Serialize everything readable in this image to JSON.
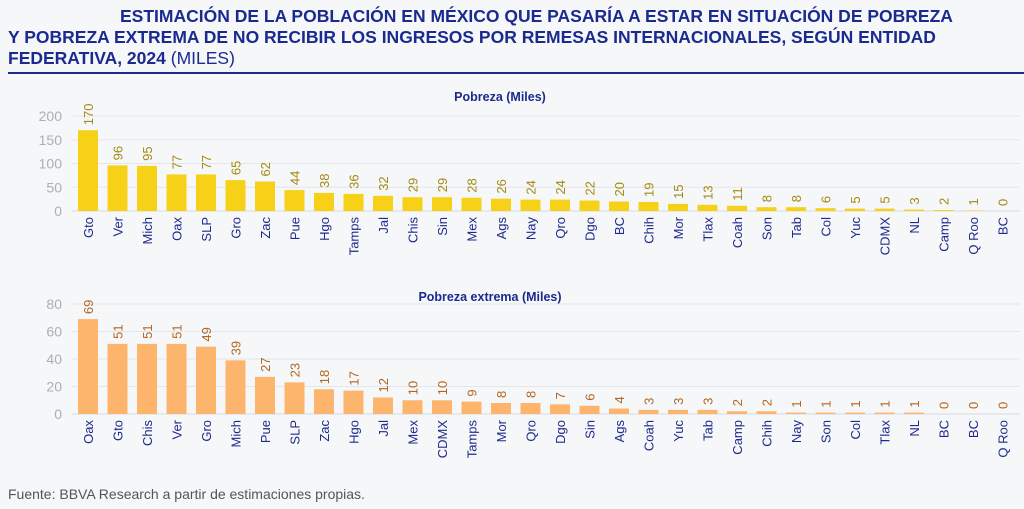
{
  "title": {
    "line1": "ESTIMACIÓN DE LA POBLACIÓN EN MÉXICO QUE PASARÍA A ESTAR EN SITUACIÓN DE POBREZA",
    "line2": "Y POBREZA EXTREMA DE NO RECIBIR LOS INGRESOS POR REMESAS INTERNACIONALES, SEGÚN ENTIDAD",
    "line3_bold": "FEDERATIVA, 2024",
    "line3_normal": "(MILES)"
  },
  "source": "Fuente: BBVA Research a partir de estimaciones propias.",
  "chart_data": [
    {
      "type": "bar",
      "title": "Pobreza (Miles)",
      "categories": [
        "Gto",
        "Ver",
        "Mich",
        "Oax",
        "SLP",
        "Gro",
        "Zac",
        "Pue",
        "Hgo",
        "Tamps",
        "Jal",
        "Chis",
        "Sin",
        "Mex",
        "Ags",
        "Nay",
        "Qro",
        "Dgo",
        "BC",
        "Chih",
        "Mor",
        "Tlax",
        "Coah",
        "Son",
        "Tab",
        "Col",
        "Yuc",
        "CDMX",
        "NL",
        "Camp",
        "Q Roo",
        "BC"
      ],
      "values": [
        170,
        96,
        95,
        77,
        77,
        65,
        62,
        44,
        38,
        36,
        32,
        29,
        29,
        28,
        26,
        24,
        24,
        22,
        20,
        19,
        15,
        13,
        11,
        8,
        8,
        6,
        5,
        5,
        3,
        2,
        1,
        0
      ],
      "ylim": [
        0,
        200
      ],
      "yticks": [
        0,
        50,
        100,
        150,
        200
      ],
      "grid": true,
      "bar_color": "#f7d117",
      "label_color": "#a48a12"
    },
    {
      "type": "bar",
      "title": "Pobreza extrema (Miles)",
      "categories": [
        "Oax",
        "Gto",
        "Chis",
        "Ver",
        "Gro",
        "Mich",
        "Pue",
        "SLP",
        "Zac",
        "Hgo",
        "Jal",
        "Mex",
        "CDMX",
        "Tamps",
        "Mor",
        "Qro",
        "Dgo",
        "Sin",
        "Ags",
        "Coah",
        "Yuc",
        "Tab",
        "Camp",
        "Chih",
        "Nay",
        "Son",
        "Col",
        "Tlax",
        "NL",
        "BC",
        "BC",
        "Q Roo"
      ],
      "values": [
        69,
        51,
        51,
        51,
        49,
        39,
        27,
        23,
        18,
        17,
        12,
        10,
        10,
        9,
        8,
        8,
        7,
        6,
        4,
        3,
        3,
        3,
        2,
        2,
        1,
        1,
        1,
        1,
        1,
        0,
        0,
        0
      ],
      "ylim": [
        0,
        80
      ],
      "yticks": [
        0,
        20,
        40,
        60,
        80
      ],
      "grid": true,
      "bar_color": "#fdb46c",
      "label_color": "#b4661f"
    }
  ],
  "colors": {
    "title": "#1b2a8f",
    "category_labels": "#1f2a8c",
    "axis_ticks": "#a9afb8"
  }
}
